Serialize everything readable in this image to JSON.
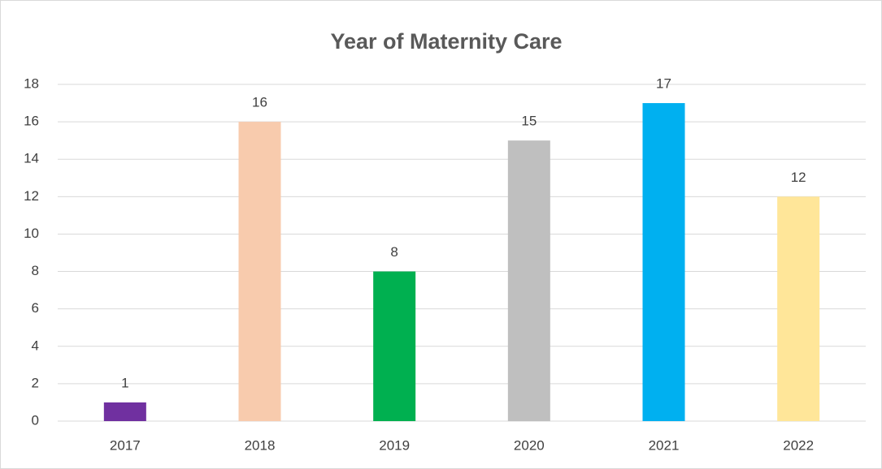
{
  "chart_data": {
    "type": "bar",
    "title": "Year of Maternity Care",
    "categories": [
      "2017",
      "2018",
      "2019",
      "2020",
      "2021",
      "2022"
    ],
    "values": [
      1,
      16,
      8,
      15,
      17,
      12
    ],
    "colors": [
      "#7030a0",
      "#f8cbad",
      "#00b050",
      "#bfbfbf",
      "#00b0f0",
      "#ffe699"
    ],
    "ylim": [
      0,
      18
    ],
    "yticks": [
      0,
      2,
      4,
      6,
      8,
      10,
      12,
      14,
      16,
      18
    ],
    "grid": true
  }
}
